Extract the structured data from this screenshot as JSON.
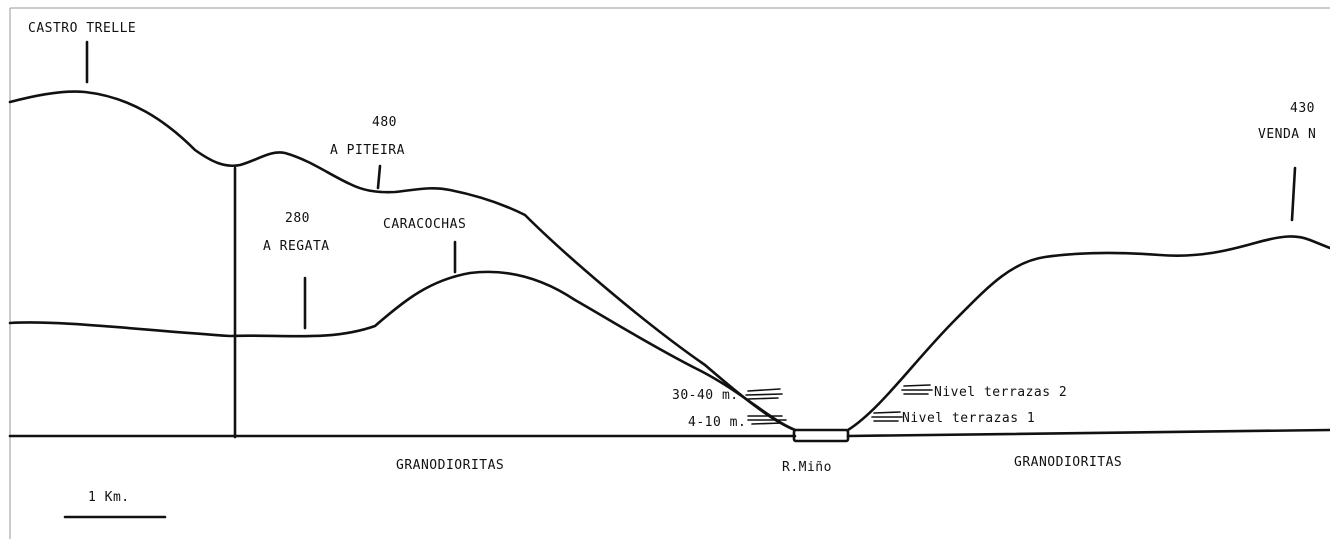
{
  "labels": {
    "castro_trelle": "CASTRO TRELLE",
    "piteira_elevation": "480",
    "piteira_name": "A PITEIRA",
    "regata_elevation": "280",
    "regata_name": "A REGATA",
    "caracochas": "CARACOCHAS",
    "venda_elevation": "430",
    "venda_name": "VENDA N",
    "terrace_depth_2": "30-40 m.",
    "terrace_depth_1": "4-10 m.",
    "terrace_level_2": "Nivel  terrazas 2",
    "terrace_level_1": "Nivel terrazas 1",
    "rock_left": "GRANODIORITAS",
    "river": "R.Miño",
    "rock_right": "GRANODIORITAS",
    "scale": "1 Km."
  },
  "colors": {
    "ink": "#111111",
    "frame": "#9a9a9a",
    "background": "#ffffff"
  }
}
